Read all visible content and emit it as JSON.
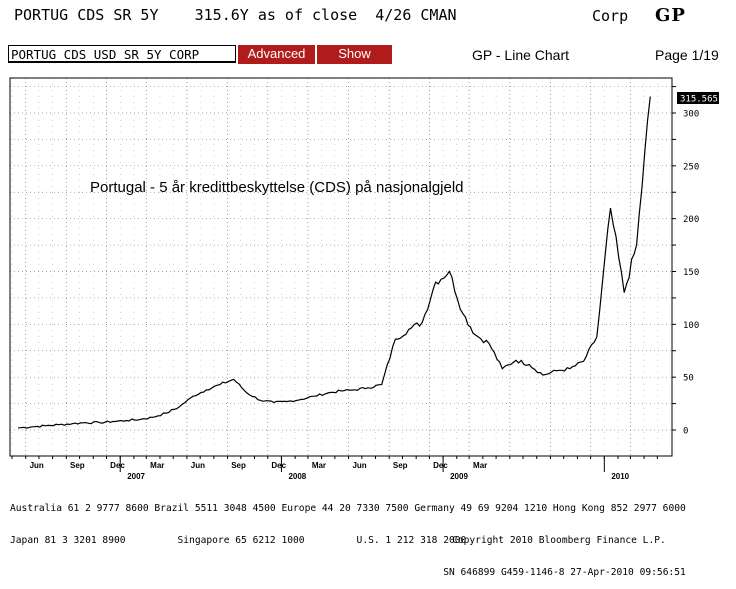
{
  "header": {
    "ticker_line": "PORTUG CDS SR 5Y    315.6Y as of close  4/26 CMAN",
    "corp_label": "Corp",
    "gp_logo": "GP",
    "security_field": "PORTUG CDS USD SR 5Y CORP",
    "advanced_label": "Advanced",
    "show_label": "Show",
    "chart_type": "GP - Line Chart",
    "page_indicator": "Page 1/19"
  },
  "chart_data": {
    "type": "line",
    "title": "Portugal - 5 år kredittbeskyttelse (CDS) på nasjonalgjeld",
    "xlabel": "",
    "ylabel": "",
    "ylim": [
      -25,
      320
    ],
    "yticks": [
      0,
      50,
      100,
      150,
      200,
      250,
      300
    ],
    "grid": true,
    "last_value_label": "315.565",
    "x_month_ticks": [
      "Jun",
      "Sep",
      "Dec",
      "Mar",
      "Jun",
      "Sep",
      "Dec",
      "Mar",
      "Jun",
      "Sep",
      "Dec",
      "Mar"
    ],
    "x_year_labels": [
      "2007",
      "2008",
      "2009",
      "2010"
    ],
    "series": [
      {
        "x": [
          "2006-05",
          "2006-06",
          "2006-07",
          "2006-08",
          "2006-09",
          "2006-10",
          "2006-11",
          "2006-12",
          "2007-01",
          "2007-02",
          "2007-03",
          "2007-04",
          "2007-05",
          "2007-06",
          "2007-07",
          "2007-08",
          "2007-09",
          "2007-10",
          "2007-11",
          "2007-12",
          "2008-01",
          "2008-02",
          "2008-03",
          "2008-04",
          "2008-05",
          "2008-06",
          "2008-07",
          "2008-08",
          "2008-09",
          "2008-10",
          "2008-11",
          "2008-12",
          "2009-01",
          "2009-02",
          "2009-03",
          "2009-04",
          "2009-05",
          "2009-06",
          "2009-07",
          "2009-08",
          "2009-09",
          "2009-10",
          "2009-11",
          "2009-12",
          "2010-01",
          "2010-02",
          "2010-03",
          "2010-04"
        ],
        "values": [
          2,
          3,
          4,
          5,
          6,
          7,
          7,
          8,
          9,
          10,
          12,
          16,
          22,
          32,
          38,
          43,
          48,
          35,
          28,
          26,
          27,
          29,
          32,
          35,
          37,
          38,
          40,
          43,
          86,
          95,
          102,
          140,
          150,
          110,
          90,
          82,
          58,
          66,
          62,
          52,
          56,
          58,
          65,
          88,
          210,
          130,
          175,
          315.6
        ]
      }
    ]
  },
  "footer": {
    "line1": "Australia 61 2 9777 8600 Brazil 5511 3048 4500 Europe 44 20 7330 7500 Germany 49 69 9204 1210 Hong Kong 852 2977 6000",
    "line2_left": "Japan 81 3 3201 8900         Singapore 65 6212 1000         U.S. 1 212 318 2000",
    "line2_right": "Copyright 2010 Bloomberg Finance L.P.",
    "line3_right": "SN 646899 G459-1146-8 27-Apr-2010 09:56:51"
  }
}
